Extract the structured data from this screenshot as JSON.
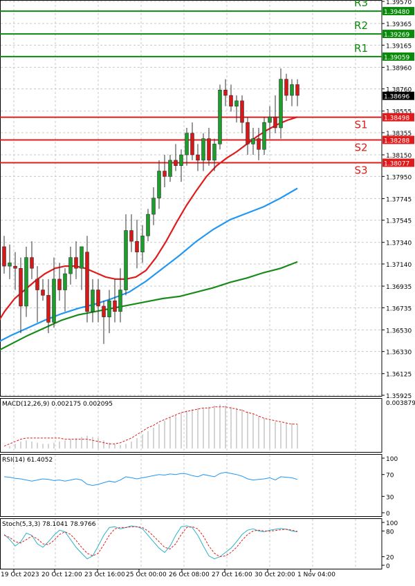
{
  "chart_data": [
    {
      "type": "candlestick",
      "panel": "price",
      "yticks": [
        "1.39570",
        "1.39365",
        "1.39165",
        "1.38960",
        "1.38760",
        "1.38555",
        "1.38355",
        "1.38150",
        "1.37950",
        "1.37745",
        "1.37545",
        "1.37340",
        "1.37140",
        "1.36935",
        "1.36735",
        "1.36530",
        "1.36330",
        "1.36125",
        "1.35925"
      ],
      "ylim": [
        1.35925,
        1.3957
      ],
      "levels": [
        {
          "name": "R3",
          "value": 1.3948,
          "label": "1.39480",
          "color": "#0a8a0a"
        },
        {
          "name": "R2",
          "value": 1.39269,
          "label": "1.39269",
          "color": "#0a8a0a"
        },
        {
          "name": "R1",
          "value": 1.39059,
          "label": "1.39059",
          "color": "#0a8a0a"
        },
        {
          "name": "S1",
          "value": 1.38498,
          "label": "1.38498",
          "color": "#e01b1b"
        },
        {
          "name": "S2",
          "value": 1.38288,
          "label": "1.38288",
          "color": "#e01b1b"
        },
        {
          "name": "S3",
          "value": 1.38077,
          "label": "1.38077",
          "color": "#e01b1b"
        }
      ],
      "current_price": {
        "label": "1.38696",
        "value": 1.38696
      },
      "candles": [
        [
          1.373,
          1.374,
          1.3705,
          1.3712
        ],
        [
          1.3712,
          1.3732,
          1.37,
          1.3715
        ],
        [
          1.3712,
          1.3725,
          1.369,
          1.371
        ],
        [
          1.371,
          1.372,
          1.365,
          1.3675
        ],
        [
          1.3675,
          1.373,
          1.3665,
          1.372
        ],
        [
          1.372,
          1.3735,
          1.37,
          1.371
        ],
        [
          1.37,
          1.3712,
          1.366,
          1.369
        ],
        [
          1.369,
          1.37,
          1.368,
          1.3685
        ],
        [
          1.3685,
          1.37,
          1.365,
          1.366
        ],
        [
          1.366,
          1.372,
          1.3655,
          1.37
        ],
        [
          1.37,
          1.3715,
          1.368,
          1.369
        ],
        [
          1.369,
          1.371,
          1.367,
          1.3705
        ],
        [
          1.3705,
          1.373,
          1.3695,
          1.372
        ],
        [
          1.372,
          1.3735,
          1.37,
          1.371
        ],
        [
          1.371,
          1.373,
          1.369,
          1.373
        ],
        [
          1.3725,
          1.374,
          1.366,
          1.367
        ],
        [
          1.367,
          1.37,
          1.366,
          1.369
        ],
        [
          1.369,
          1.37,
          1.366,
          1.3675
        ],
        [
          1.3675,
          1.368,
          1.364,
          1.3665
        ],
        [
          1.3665,
          1.369,
          1.365,
          1.368
        ],
        [
          1.368,
          1.37,
          1.366,
          1.367
        ],
        [
          1.367,
          1.371,
          1.366,
          1.369
        ],
        [
          1.369,
          1.376,
          1.3685,
          1.3745
        ],
        [
          1.3745,
          1.376,
          1.3725,
          1.3735
        ],
        [
          1.3735,
          1.3755,
          1.371,
          1.3725
        ],
        [
          1.3725,
          1.375,
          1.3715,
          1.374
        ],
        [
          1.374,
          1.3765,
          1.3735,
          1.376
        ],
        [
          1.376,
          1.3785,
          1.375,
          1.3775
        ],
        [
          1.3775,
          1.381,
          1.3765,
          1.38
        ],
        [
          1.38,
          1.3815,
          1.3785,
          1.3795
        ],
        [
          1.3795,
          1.3815,
          1.379,
          1.381
        ],
        [
          1.381,
          1.3825,
          1.38,
          1.3805
        ],
        [
          1.3805,
          1.382,
          1.379,
          1.3815
        ],
        [
          1.3815,
          1.384,
          1.3805,
          1.3835
        ],
        [
          1.3835,
          1.3845,
          1.381,
          1.3815
        ],
        [
          1.3815,
          1.3825,
          1.38,
          1.381
        ],
        [
          1.381,
          1.3835,
          1.38,
          1.383
        ],
        [
          1.383,
          1.384,
          1.3805,
          1.381
        ],
        [
          1.381,
          1.383,
          1.38,
          1.3825
        ],
        [
          1.3825,
          1.388,
          1.382,
          1.3875
        ],
        [
          1.3875,
          1.3885,
          1.386,
          1.387
        ],
        [
          1.387,
          1.388,
          1.3855,
          1.386
        ],
        [
          1.386,
          1.387,
          1.3845,
          1.3865
        ],
        [
          1.3865,
          1.387,
          1.3835,
          1.3845
        ],
        [
          1.3845,
          1.385,
          1.3815,
          1.3825
        ],
        [
          1.3825,
          1.384,
          1.3815,
          1.383
        ],
        [
          1.383,
          1.384,
          1.381,
          1.382
        ],
        [
          1.382,
          1.385,
          1.3815,
          1.3845
        ],
        [
          1.3845,
          1.386,
          1.383,
          1.385
        ],
        [
          1.385,
          1.387,
          1.3835,
          1.384
        ],
        [
          1.384,
          1.3895,
          1.383,
          1.3885
        ],
        [
          1.3885,
          1.389,
          1.3865,
          1.387
        ],
        [
          1.387,
          1.3885,
          1.386,
          1.388
        ],
        [
          1.388,
          1.3885,
          1.386,
          1.387
        ]
      ],
      "moving_averages": [
        {
          "color": "#e01b1b",
          "values": [
            1.3655,
            1.367,
            1.3682,
            1.369,
            1.3698,
            1.3705,
            1.371,
            1.3712,
            1.3712,
            1.371,
            1.3706,
            1.3702,
            1.37,
            1.37,
            1.3702,
            1.3708,
            1.372,
            1.3735,
            1.3752,
            1.3768,
            1.3782,
            1.3795,
            1.3805,
            1.3812,
            1.3818,
            1.3825,
            1.3832,
            1.3838,
            1.3843,
            1.3847,
            1.385
          ]
        },
        {
          "color": "#2196f3",
          "values": [
            1.364,
            1.3648,
            1.3655,
            1.3662,
            1.3668,
            1.3673,
            1.3677,
            1.3682,
            1.3688,
            1.3698,
            1.371,
            1.3722,
            1.3735,
            1.3746,
            1.3755,
            1.3761,
            1.3767,
            1.3775,
            1.3784
          ]
        },
        {
          "color": "#1a8a1a",
          "values": [
            1.3632,
            1.364,
            1.3648,
            1.3655,
            1.3662,
            1.3667,
            1.367,
            1.3673,
            1.3676,
            1.3679,
            1.3682,
            1.3684,
            1.3688,
            1.3692,
            1.3697,
            1.3701,
            1.3706,
            1.371,
            1.3716
          ]
        }
      ]
    },
    {
      "type": "histogram",
      "panel": "macd",
      "label": "MACD(12,26,9) 0.002175 0.002095",
      "ytick": "0.003879",
      "histogram": [
        0.0,
        0.0002,
        0.0004,
        0.0006,
        0.0007,
        0.0006,
        0.0005,
        0.0004,
        0.0004,
        0.0005,
        0.0006,
        0.0007,
        0.0008,
        0.0009,
        0.001,
        0.0011,
        0.001,
        0.0009,
        0.0007,
        0.0005,
        0.0004,
        0.0003,
        0.0004,
        0.0006,
        0.0009,
        0.0012,
        0.0015,
        0.0018,
        0.0021,
        0.0024,
        0.0027,
        0.0029,
        0.0031,
        0.0033,
        0.0034,
        0.0035,
        0.0035,
        0.0036,
        0.0037,
        0.0038,
        0.0037,
        0.0036,
        0.0035,
        0.0034,
        0.0032,
        0.003,
        0.0028,
        0.0026,
        0.0024,
        0.0023,
        0.0022,
        0.0022,
        0.0022,
        0.0021
      ],
      "signal": [
        0.0002,
        0.0004,
        0.0006,
        0.0008,
        0.0009,
        0.0009,
        0.0009,
        0.0009,
        0.0009,
        0.0009,
        0.0009,
        0.0008,
        0.0008,
        0.0008,
        0.0008,
        0.0008,
        0.0007,
        0.0006,
        0.0005,
        0.0004,
        0.0004,
        0.0005,
        0.0007,
        0.0009,
        0.0012,
        0.0015,
        0.0018,
        0.002,
        0.0023,
        0.0025,
        0.0027,
        0.0029,
        0.0031,
        0.0032,
        0.0033,
        0.0034,
        0.0035,
        0.0035,
        0.0036,
        0.0036,
        0.0036,
        0.0035,
        0.0034,
        0.0033,
        0.0031,
        0.003,
        0.0028,
        0.0026,
        0.0025,
        0.0024,
        0.0023,
        0.0022,
        0.0021,
        0.0021
      ]
    },
    {
      "type": "line",
      "panel": "rsi",
      "label": "RSI(14) 61.4052",
      "yticks": [
        "100",
        "70",
        "30",
        "0"
      ],
      "values": [
        66,
        65,
        63,
        62,
        60,
        58,
        60,
        62,
        61,
        59,
        60,
        58,
        60,
        62,
        60,
        52,
        50,
        52,
        55,
        58,
        56,
        60,
        66,
        64,
        62,
        64,
        66,
        68,
        70,
        69,
        71,
        70,
        72,
        71,
        68,
        66,
        70,
        68,
        66,
        72,
        74,
        72,
        70,
        67,
        62,
        60,
        61,
        62,
        64,
        60,
        66,
        65,
        64,
        61
      ]
    },
    {
      "type": "line",
      "panel": "stoch",
      "label": "Stoch(5,3,3) 78.1041 78.9766",
      "yticks": [
        "100",
        "80",
        "20",
        "0"
      ],
      "k": [
        72,
        60,
        45,
        55,
        75,
        70,
        50,
        42,
        55,
        70,
        82,
        78,
        60,
        42,
        28,
        15,
        22,
        45,
        70,
        88,
        90,
        85,
        88,
        92,
        90,
        85,
        70,
        55,
        40,
        30,
        45,
        70,
        90,
        92,
        88,
        70,
        45,
        22,
        15,
        20,
        30,
        40,
        55,
        72,
        82,
        85,
        80,
        78,
        82,
        84,
        86,
        84,
        80,
        78
      ],
      "d": [
        70,
        65,
        55,
        52,
        60,
        68,
        62,
        50,
        48,
        58,
        72,
        78,
        72,
        58,
        42,
        28,
        22,
        28,
        48,
        70,
        85,
        88,
        88,
        90,
        90,
        88,
        80,
        68,
        55,
        42,
        38,
        50,
        72,
        88,
        90,
        85,
        68,
        45,
        28,
        20,
        22,
        30,
        42,
        58,
        72,
        80,
        82,
        80,
        80,
        81,
        83,
        84,
        82,
        79
      ]
    }
  ],
  "x_labels": [
    "19 Oct 2023",
    "20 Oct 12:00",
    "23 Oct 16:00",
    "25 Oct 00:00",
    "26 Oct 08:00",
    "27 Oct 16:00",
    "30 Oct 20:00",
    "1 Nov 04:00"
  ]
}
